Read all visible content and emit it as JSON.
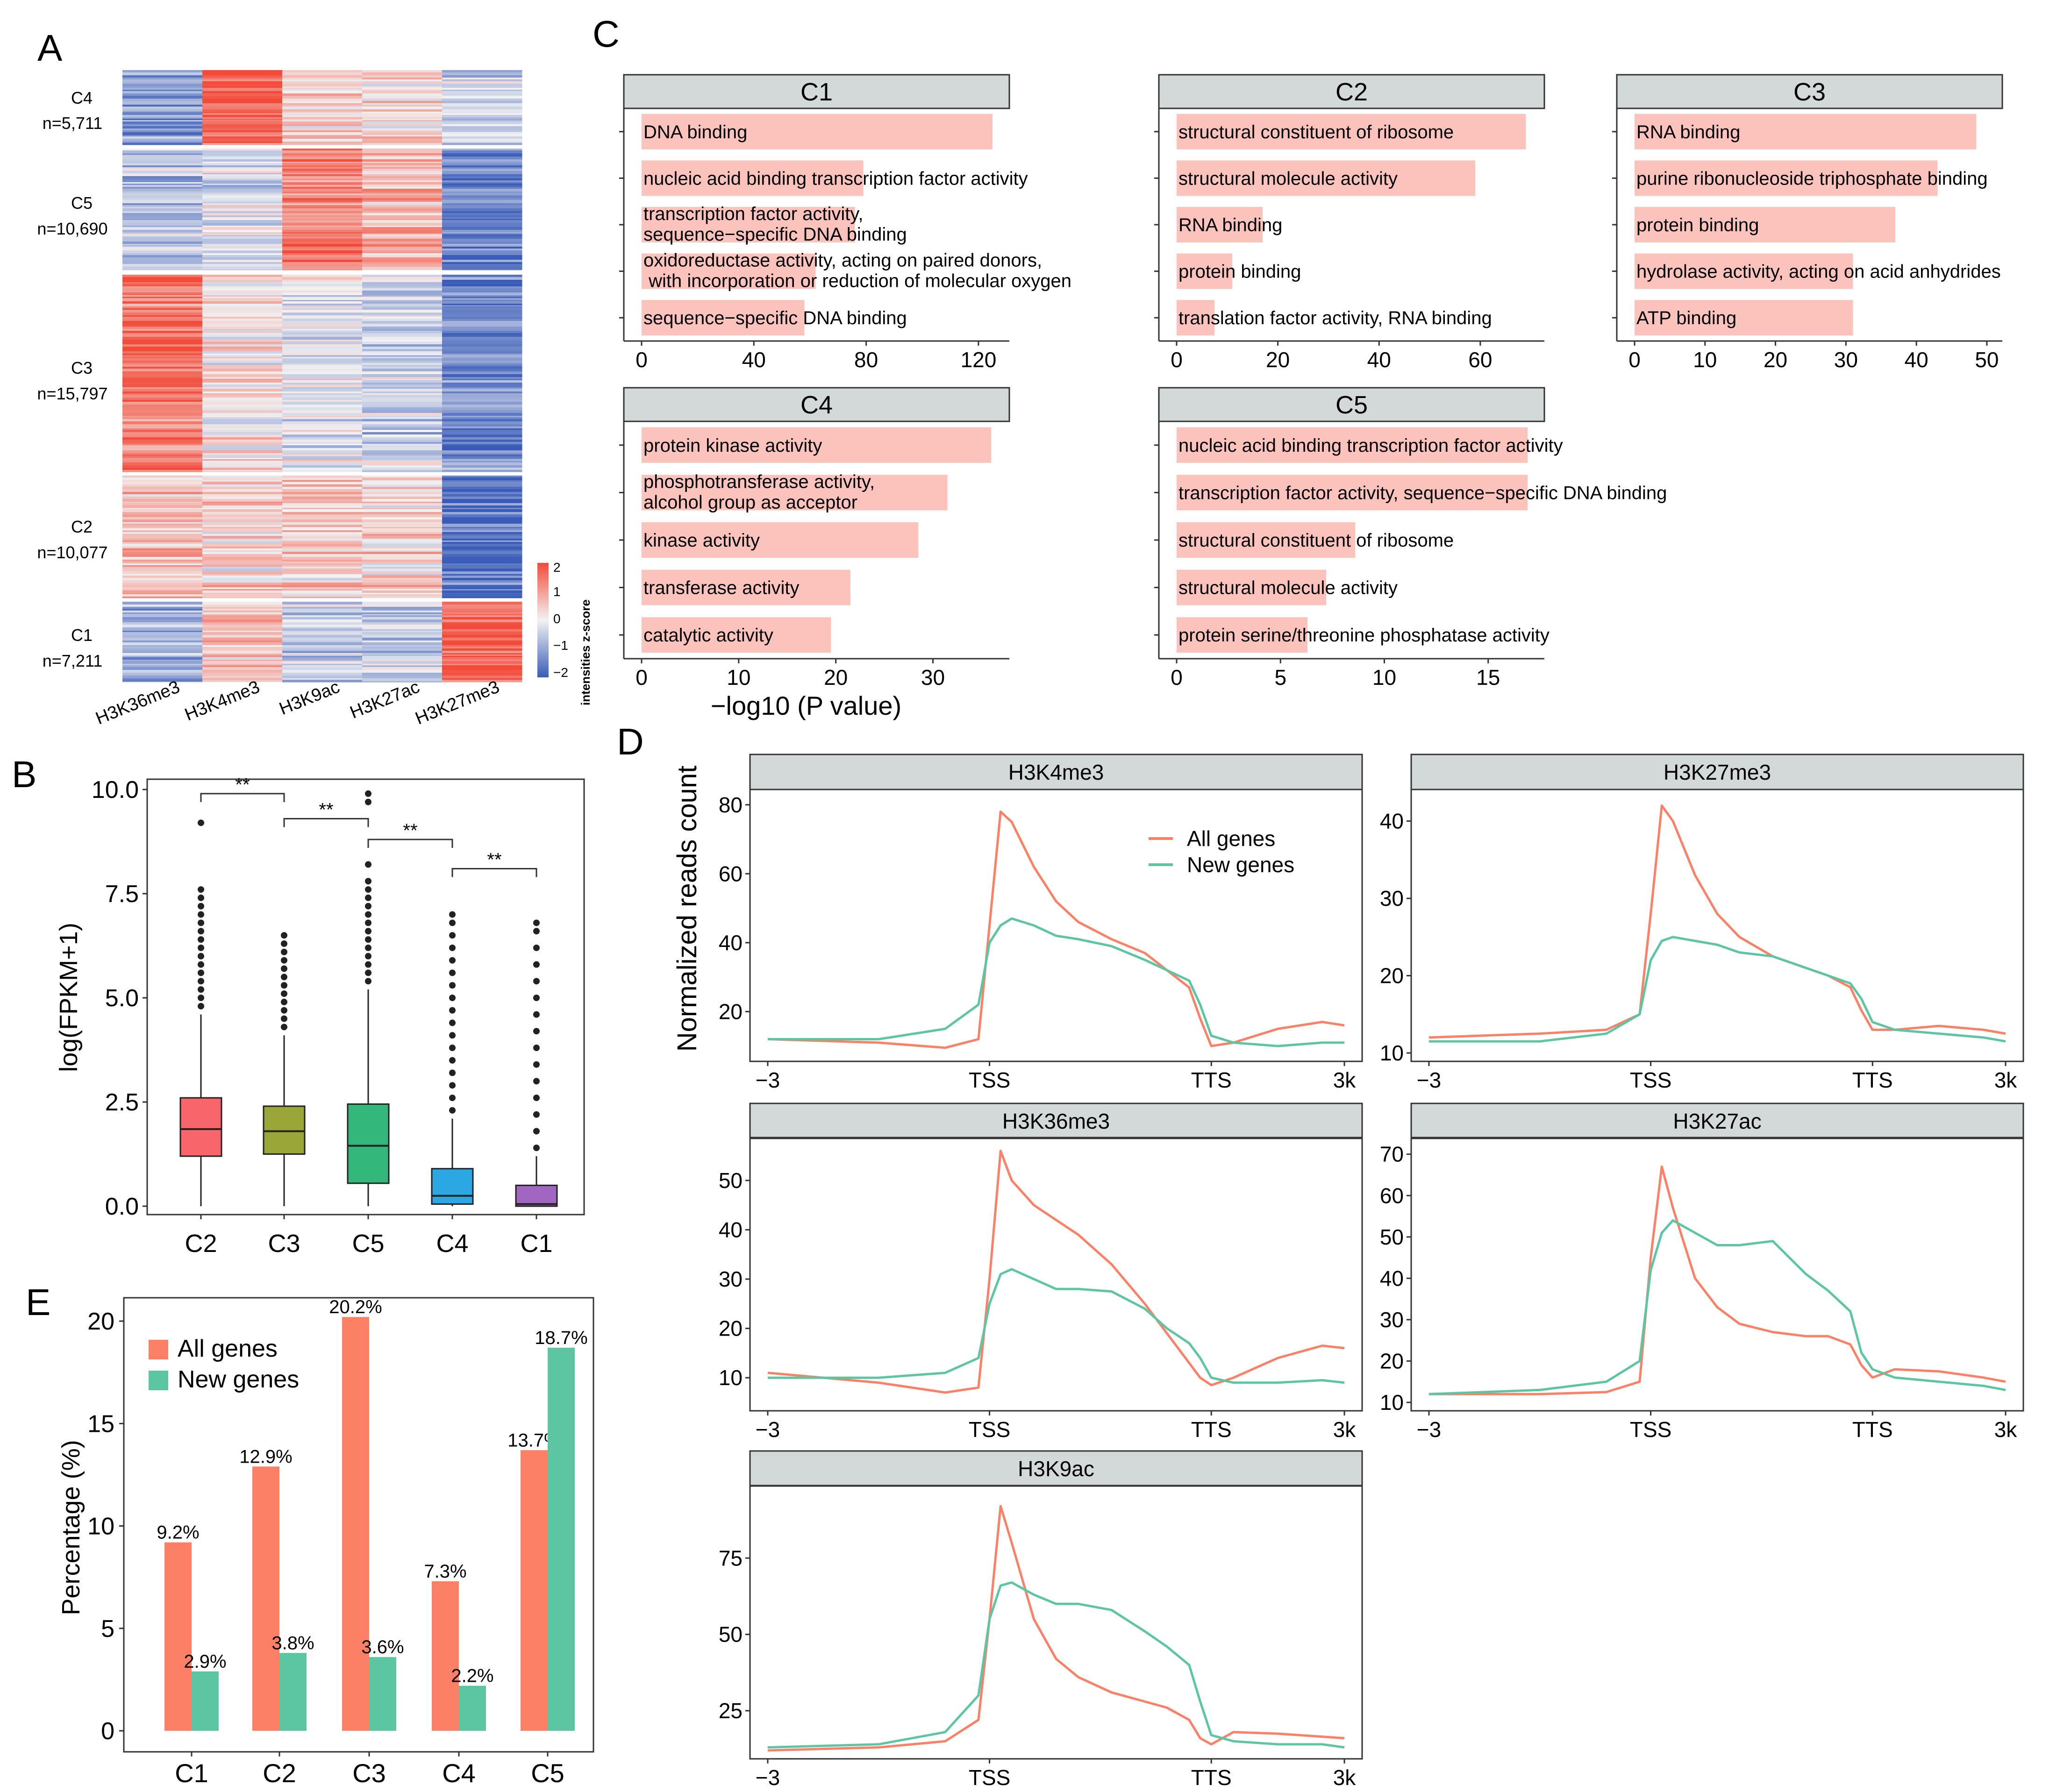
{
  "figure": {
    "panel_letters": {
      "A": "A",
      "B": "B",
      "C": "C",
      "D": "D",
      "E": "E"
    }
  },
  "colors": {
    "red": "#fb8066",
    "teal": "#5cc6a3",
    "bar_pink": "#fcc3bd",
    "header_gray": "#d3d8d8",
    "heat_high": "#f24b3a",
    "heat_mid": "#f2f2f2",
    "heat_low": "#3a5cb8"
  },
  "heatmap": {
    "columns": [
      "H3K36me3",
      "H3K4me3",
      "H3K9ac",
      "H3K27ac",
      "H3K27me3"
    ],
    "clusters": [
      {
        "id": "C4",
        "n": "n=5,711",
        "z": [
          -1.1,
          1.6,
          0.4,
          0.2,
          -0.5
        ]
      },
      {
        "id": "C5",
        "n": "n=10,690",
        "z": [
          -0.6,
          -0.3,
          1.3,
          0.7,
          -1.5
        ]
      },
      {
        "id": "C3",
        "n": "n=15,797",
        "z": [
          1.5,
          0.3,
          -0.1,
          -0.4,
          -1.4
        ]
      },
      {
        "id": "C2",
        "n": "n=10,077",
        "z": [
          0.6,
          0.3,
          0.5,
          0.3,
          -1.7
        ]
      },
      {
        "id": "C1",
        "n": "n=7,211",
        "z": [
          -0.9,
          0.6,
          -0.6,
          -0.4,
          1.6
        ]
      }
    ],
    "legend_title": "intensities z-score",
    "legend_ticks": [
      "2",
      "1",
      "0",
      "−1",
      "−2"
    ]
  },
  "chart_data": [
    {
      "panel": "B",
      "type": "box",
      "ylabel": "log(FPKM+1)",
      "ylim": [
        0,
        10
      ],
      "yticks": [
        "0.0",
        "2.5",
        "5.0",
        "7.5",
        "10.0"
      ],
      "categories": [
        "C2",
        "C3",
        "C5",
        "C4",
        "C1"
      ],
      "boxes": [
        {
          "name": "C2",
          "color": "#f8656a",
          "min": 0.0,
          "q1": 1.2,
          "median": 1.85,
          "q3": 2.6,
          "whisker_hi": 4.6,
          "outliers": [
            4.8,
            5.0,
            5.2,
            5.4,
            5.6,
            5.8,
            6.0,
            6.2,
            6.4,
            6.6,
            6.8,
            7.0,
            7.2,
            7.4,
            7.6,
            9.2
          ]
        },
        {
          "name": "C3",
          "color": "#9aa738",
          "min": 0.0,
          "q1": 1.25,
          "median": 1.8,
          "q3": 2.4,
          "whisker_hi": 4.1,
          "outliers": [
            4.3,
            4.5,
            4.7,
            4.9,
            5.1,
            5.3,
            5.5,
            5.7,
            5.9,
            6.1,
            6.3,
            6.5
          ]
        },
        {
          "name": "C5",
          "color": "#34b77a",
          "min": 0.0,
          "q1": 0.55,
          "median": 1.45,
          "q3": 2.45,
          "whisker_hi": 5.2,
          "outliers": [
            5.4,
            5.6,
            5.8,
            6.0,
            6.2,
            6.4,
            6.6,
            6.8,
            7.0,
            7.2,
            7.4,
            7.6,
            7.8,
            8.2,
            9.7,
            9.9
          ]
        },
        {
          "name": "C4",
          "color": "#2ba7e3",
          "min": 0.0,
          "q1": 0.05,
          "median": 0.25,
          "q3": 0.9,
          "whisker_hi": 2.1,
          "outliers": [
            2.3,
            2.6,
            2.9,
            3.2,
            3.5,
            3.8,
            4.1,
            4.4,
            4.7,
            5.0,
            5.3,
            5.6,
            5.9,
            6.2,
            6.5,
            6.8,
            7.0
          ]
        },
        {
          "name": "C1",
          "color": "#a066c1",
          "min": 0.0,
          "q1": 0.0,
          "median": 0.05,
          "q3": 0.5,
          "whisker_hi": 1.2,
          "outliers": [
            1.4,
            1.8,
            2.2,
            2.6,
            3.0,
            3.4,
            3.8,
            4.2,
            4.6,
            5.0,
            5.4,
            5.8,
            6.2,
            6.6,
            6.8
          ]
        }
      ],
      "significance": [
        {
          "from": "C2",
          "to": "C3",
          "y": 9.9,
          "label": "**"
        },
        {
          "from": "C3",
          "to": "C5",
          "y": 9.3,
          "label": "**"
        },
        {
          "from": "C5",
          "to": "C4",
          "y": 8.8,
          "label": "**"
        },
        {
          "from": "C4",
          "to": "C1",
          "y": 8.1,
          "label": "**"
        }
      ]
    },
    {
      "panel": "C",
      "type": "bar",
      "orientation": "horizontal",
      "xlabel": "−log10 (P value)",
      "facets": [
        {
          "title": "C1",
          "xlim": [
            0,
            128
          ],
          "xticks": [
            0,
            40,
            80,
            120
          ],
          "label_width": "normal",
          "terms": [
            {
              "label": "DNA binding",
              "value": 125
            },
            {
              "label": "nucleic acid binding transcription factor activity",
              "value": 79
            },
            {
              "label": "transcription factor activity,\nsequence−specific DNA binding",
              "value": 76
            },
            {
              "label": " oxidoreductase activity, acting on paired donors,\n with incorporation or reduction of molecular oxygen",
              "value": 62
            },
            {
              "label": "sequence−specific DNA binding",
              "value": 58
            }
          ]
        },
        {
          "title": "C2",
          "xlim": [
            0,
            71
          ],
          "xticks": [
            0,
            20,
            40,
            60
          ],
          "label_width": "normal",
          "terms": [
            {
              "label": "structural constituent of ribosome",
              "value": 69
            },
            {
              "label": "structural molecule activity",
              "value": 59
            },
            {
              "label": "RNA binding",
              "value": 17
            },
            {
              "label": "protein binding",
              "value": 11
            },
            {
              "label": "translation factor activity, RNA binding",
              "value": 7.5
            }
          ]
        },
        {
          "title": "C3",
          "xlim": [
            0,
            51
          ],
          "xticks": [
            0,
            10,
            20,
            30,
            40,
            50
          ],
          "label_width": "normal",
          "terms": [
            {
              "label": "RNA binding",
              "value": 48.5
            },
            {
              "label": "purine ribonucleoside triphosphate binding",
              "value": 43
            },
            {
              "label": "protein binding",
              "value": 37
            },
            {
              "label": "hydrolase activity, acting on acid anhydrides",
              "value": 31
            },
            {
              "label": "ATP binding",
              "value": 31
            }
          ]
        },
        {
          "title": "C4",
          "xlim": [
            0,
            37
          ],
          "xticks": [
            0,
            10,
            20,
            30
          ],
          "label_width": "normal",
          "terms": [
            {
              "label": "protein kinase activity",
              "value": 36
            },
            {
              "label": "phosphotransferase activity,\nalcohol group as acceptor",
              "value": 31.5
            },
            {
              "label": "kinase activity",
              "value": 28.5
            },
            {
              "label": "transferase activity",
              "value": 21.5
            },
            {
              "label": "catalytic activity",
              "value": 19.5
            }
          ]
        },
        {
          "title": "C5",
          "xlim": [
            0,
            17.3
          ],
          "xticks": [
            0,
            5,
            10,
            15
          ],
          "label_width": "normal",
          "terms": [
            {
              "label": "nucleic acid binding transcription factor activity",
              "value": 16.9
            },
            {
              "label": "transcription factor activity, sequence−specific DNA binding",
              "value": 16.9
            },
            {
              "label": "structural constituent of ribosome",
              "value": 8.6
            },
            {
              "label": "structural molecule activity",
              "value": 7.2
            },
            {
              "label": "protein serine/threonine phosphatase activity",
              "value": 6.3
            }
          ]
        }
      ]
    },
    {
      "panel": "D",
      "type": "line",
      "ylabel": "Normalized reads count",
      "legend": [
        "All genes",
        "New genes"
      ],
      "legend_position": "top-right of first facet",
      "x_ticks": [
        "−3",
        "TSS",
        "TTS",
        "3k"
      ],
      "x_tick_values": [
        -1.0,
        0.0,
        1.0,
        1.6
      ],
      "facets": [
        {
          "title": "H3K4me3",
          "ylim": [
            8,
            82
          ],
          "yticks": [
            20,
            40,
            60,
            80
          ],
          "x": [
            -1.0,
            -0.5,
            -0.2,
            -0.05,
            0.0,
            0.05,
            0.1,
            0.2,
            0.3,
            0.4,
            0.55,
            0.7,
            0.8,
            0.9,
            0.95,
            1.0,
            1.1,
            1.3,
            1.5,
            1.6
          ],
          "series": [
            {
              "name": "All genes",
              "values": [
                12,
                11,
                9.5,
                12,
                45,
                78,
                75,
                62,
                52,
                46,
                41,
                37,
                32,
                27,
                18,
                10,
                11,
                15,
                17,
                16
              ]
            },
            {
              "name": "New genes",
              "values": [
                12,
                12,
                15,
                22,
                40,
                45,
                47,
                45,
                42,
                41,
                39,
                35,
                32,
                29,
                22,
                13,
                11,
                10,
                11,
                11
              ]
            }
          ]
        },
        {
          "title": "H3K27me3",
          "ylim": [
            10,
            43
          ],
          "yticks": [
            10,
            20,
            30,
            40
          ],
          "x": [
            -1.0,
            -0.5,
            -0.2,
            -0.05,
            0.0,
            0.05,
            0.1,
            0.2,
            0.3,
            0.4,
            0.55,
            0.7,
            0.8,
            0.9,
            0.95,
            1.0,
            1.1,
            1.3,
            1.5,
            1.6
          ],
          "series": [
            {
              "name": "All genes",
              "values": [
                12,
                12.5,
                13,
                15,
                28,
                42,
                40,
                33,
                28,
                25,
                22.5,
                21,
                20,
                18.5,
                15.5,
                13,
                13,
                13.5,
                13,
                12.5
              ]
            },
            {
              "name": "New genes",
              "values": [
                11.5,
                11.5,
                12.5,
                15,
                22,
                24.5,
                25,
                24.5,
                24,
                23,
                22.5,
                21,
                20,
                19,
                17,
                14,
                13,
                12.5,
                12,
                11.5
              ]
            }
          ]
        },
        {
          "title": "H3K36me3",
          "ylim": [
            5,
            57
          ],
          "yticks": [
            10,
            20,
            30,
            40,
            50
          ],
          "x": [
            -1.0,
            -0.5,
            -0.2,
            -0.05,
            0.0,
            0.05,
            0.1,
            0.2,
            0.3,
            0.4,
            0.55,
            0.7,
            0.8,
            0.9,
            0.95,
            1.0,
            1.1,
            1.3,
            1.5,
            1.6
          ],
          "series": [
            {
              "name": "All genes",
              "values": [
                11,
                9,
                7,
                8,
                30,
                56,
                50,
                45,
                42,
                39,
                33,
                25,
                19,
                13,
                10,
                8.5,
                10,
                14,
                16.5,
                16
              ]
            },
            {
              "name": "New genes",
              "values": [
                10,
                10,
                11,
                14,
                25,
                31,
                32,
                30,
                28,
                28,
                27.5,
                24,
                20,
                17,
                14,
                10,
                9,
                9,
                9.5,
                9
              ]
            }
          ]
        },
        {
          "title": "H3K27ac",
          "ylim": [
            10,
            72
          ],
          "yticks": [
            10,
            20,
            30,
            40,
            50,
            60,
            70
          ],
          "x": [
            -1.0,
            -0.5,
            -0.2,
            -0.05,
            0.0,
            0.05,
            0.1,
            0.2,
            0.3,
            0.4,
            0.55,
            0.7,
            0.8,
            0.9,
            0.95,
            1.0,
            1.1,
            1.3,
            1.5,
            1.6
          ],
          "series": [
            {
              "name": "All genes",
              "values": [
                12,
                12,
                12.5,
                15,
                45,
                67,
                57,
                40,
                33,
                29,
                27,
                26,
                26,
                24,
                19,
                16,
                18,
                17.5,
                16,
                15
              ]
            },
            {
              "name": "New genes",
              "values": [
                12,
                13,
                15,
                20,
                42,
                51,
                54,
                51,
                48,
                48,
                49,
                41,
                37,
                32,
                22,
                18,
                16,
                15,
                14,
                13
              ]
            }
          ]
        },
        {
          "title": "H3K9ac",
          "ylim": [
            12,
            96
          ],
          "yticks": [
            25,
            50,
            75
          ],
          "x": [
            -1.0,
            -0.5,
            -0.2,
            -0.05,
            0.0,
            0.05,
            0.1,
            0.2,
            0.3,
            0.4,
            0.55,
            0.7,
            0.8,
            0.9,
            0.95,
            1.0,
            1.1,
            1.3,
            1.5,
            1.6
          ],
          "series": [
            {
              "name": "All genes",
              "values": [
                12,
                13,
                15,
                22,
                55,
                92,
                80,
                55,
                42,
                36,
                31,
                28,
                26,
                22,
                16,
                14,
                18,
                17.5,
                16.5,
                16
              ]
            },
            {
              "name": "New genes",
              "values": [
                13,
                14,
                18,
                30,
                55,
                66,
                67,
                63,
                60,
                60,
                58,
                51,
                46,
                40,
                28,
                17,
                15,
                14,
                14,
                13
              ]
            }
          ]
        }
      ]
    },
    {
      "panel": "E",
      "type": "bar",
      "ylabel": "Percentage (%)",
      "ylim": [
        0,
        20.5
      ],
      "yticks": [
        0,
        5,
        10,
        15,
        20
      ],
      "categories": [
        "C1",
        "C2",
        "C3",
        "C4",
        "C5"
      ],
      "legend_position": "top-left",
      "series": [
        {
          "name": "All genes",
          "values": [
            9.2,
            12.9,
            20.2,
            7.3,
            13.7
          ],
          "labels": [
            "9.2%",
            "12.9%",
            "20.2%",
            "7.3%",
            "13.7%"
          ]
        },
        {
          "name": "New genes",
          "values": [
            2.9,
            3.8,
            3.6,
            2.2,
            18.7
          ],
          "labels": [
            "2.9%",
            "3.8%",
            "3.6%",
            "2.2%",
            "18.7%"
          ]
        }
      ]
    }
  ]
}
